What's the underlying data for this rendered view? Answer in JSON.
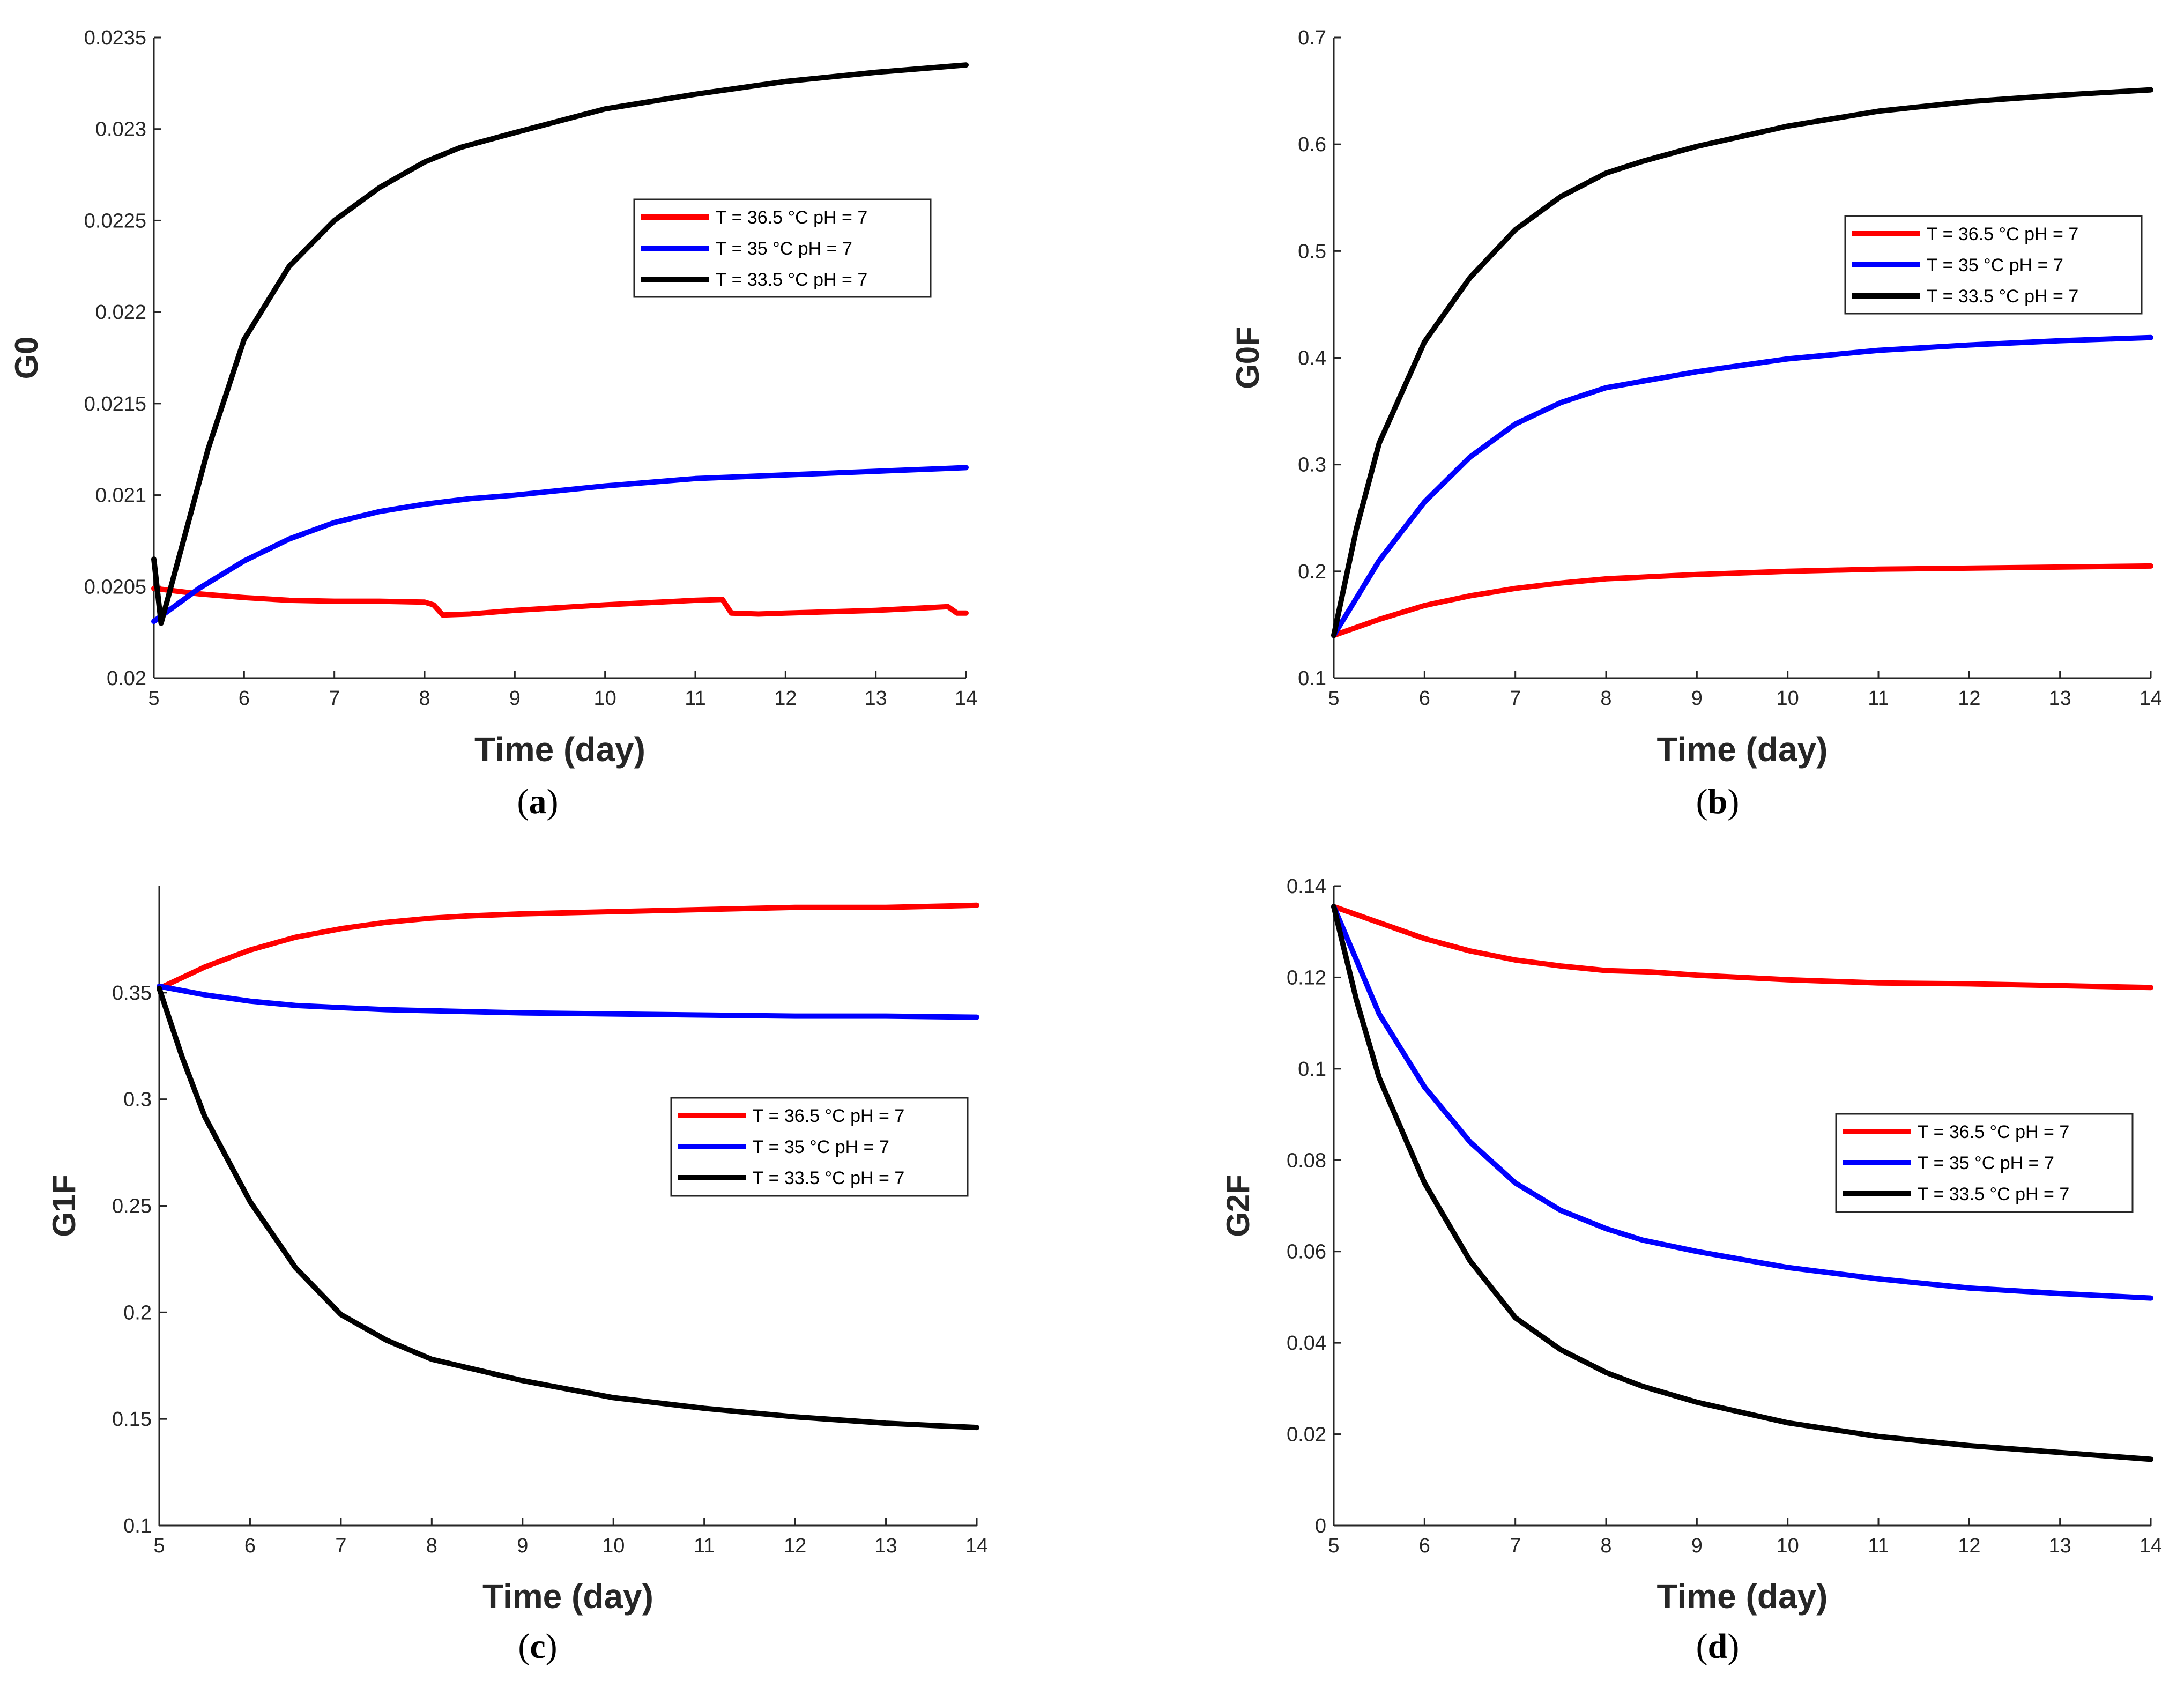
{
  "colors": {
    "red": "#ff0000",
    "blue": "#0000ff",
    "black": "#000000",
    "axis": "#262626"
  },
  "legend_labels": [
    "T = 36.5 °C pH = 7",
    "T = 35 °C pH = 7",
    "T = 33.5 °C pH = 7"
  ],
  "chart_data": [
    {
      "id": "a",
      "type": "line",
      "caption": "a",
      "title": "",
      "xlabel": "Time (day)",
      "ylabel": "G0",
      "xlim": [
        5,
        14
      ],
      "ylim": [
        0.02,
        0.0235
      ],
      "xticks": [
        "5",
        "6",
        "7",
        "8",
        "9",
        "10",
        "11",
        "12",
        "13",
        "14"
      ],
      "yticks": [
        "0.02",
        "0.0205",
        "0.021",
        "0.0215",
        "0.022",
        "0.0225",
        "0.023",
        "0.0235"
      ],
      "legend_position": "upper-right-middle",
      "series": [
        {
          "name": "T = 36.5 °C pH = 7",
          "color": "#ff0000",
          "x": [
            5,
            5.5,
            6,
            6.5,
            7,
            7.5,
            8,
            8.1,
            8.2,
            8.5,
            9,
            10,
            11,
            11.3,
            11.4,
            11.7,
            12,
            13,
            13.8,
            13.9,
            14
          ],
          "y": [
            0.02049,
            0.02046,
            0.02044,
            0.020425,
            0.02042,
            0.02042,
            0.020415,
            0.0204,
            0.020345,
            0.02035,
            0.02037,
            0.0204,
            0.020425,
            0.02043,
            0.020355,
            0.02035,
            0.020355,
            0.02037,
            0.02039,
            0.020355,
            0.020355
          ]
        },
        {
          "name": "T = 35 °C pH = 7",
          "color": "#0000ff",
          "x": [
            5,
            5.5,
            6,
            6.5,
            7,
            7.5,
            8,
            8.5,
            9,
            10,
            11,
            12,
            13,
            14
          ],
          "y": [
            0.02031,
            0.02049,
            0.02064,
            0.02076,
            0.02085,
            0.02091,
            0.02095,
            0.02098,
            0.021,
            0.02105,
            0.02109,
            0.02111,
            0.02113,
            0.02115
          ]
        },
        {
          "name": "T = 33.5 °C pH = 7",
          "color": "#000000",
          "x": [
            5,
            5.08,
            5.3,
            5.6,
            6,
            6.5,
            7,
            7.5,
            8,
            8.4,
            9,
            10,
            11,
            12,
            13,
            14
          ],
          "y": [
            0.02065,
            0.0203,
            0.0207,
            0.02125,
            0.02185,
            0.02225,
            0.0225,
            0.02268,
            0.02282,
            0.0229,
            0.02298,
            0.02311,
            0.02319,
            0.02326,
            0.02331,
            0.02335
          ]
        }
      ]
    },
    {
      "id": "b",
      "type": "line",
      "caption": "b",
      "title": "",
      "xlabel": "Time (day)",
      "ylabel": "G0F",
      "xlim": [
        5,
        14
      ],
      "ylim": [
        0.1,
        0.7
      ],
      "xticks": [
        "5",
        "6",
        "7",
        "8",
        "9",
        "10",
        "11",
        "12",
        "13",
        "14"
      ],
      "yticks": [
        "0.1",
        "0.2",
        "0.3",
        "0.4",
        "0.5",
        "0.6",
        "0.7"
      ],
      "legend_position": "upper-right-middle",
      "series": [
        {
          "name": "T = 36.5 °C pH = 7",
          "color": "#ff0000",
          "x": [
            5,
            5.5,
            6,
            6.5,
            7,
            7.5,
            8,
            8.5,
            9,
            10,
            11,
            12,
            13,
            14
          ],
          "y": [
            0.14,
            0.155,
            0.168,
            0.177,
            0.184,
            0.189,
            0.193,
            0.195,
            0.197,
            0.2,
            0.202,
            0.203,
            0.204,
            0.205
          ]
        },
        {
          "name": "T = 35 °C pH = 7",
          "color": "#0000ff",
          "x": [
            5,
            5.5,
            6,
            6.5,
            7,
            7.5,
            8,
            8.4,
            9,
            10,
            11,
            12,
            13,
            14
          ],
          "y": [
            0.14,
            0.21,
            0.265,
            0.307,
            0.338,
            0.358,
            0.372,
            0.378,
            0.387,
            0.399,
            0.407,
            0.412,
            0.416,
            0.419
          ]
        },
        {
          "name": "T = 33.5 °C pH = 7",
          "color": "#000000",
          "x": [
            5,
            5.25,
            5.5,
            6,
            6.5,
            7,
            7.5,
            8,
            8.4,
            9,
            10,
            11,
            12,
            13,
            14
          ],
          "y": [
            0.14,
            0.24,
            0.32,
            0.415,
            0.475,
            0.52,
            0.551,
            0.573,
            0.584,
            0.598,
            0.617,
            0.631,
            0.64,
            0.646,
            0.651
          ]
        }
      ]
    },
    {
      "id": "c",
      "type": "line",
      "caption": "c",
      "title": "",
      "xlabel": "Time (day)",
      "ylabel": "G1F",
      "xlim": [
        5,
        14
      ],
      "ylim": [
        0.1,
        0.4
      ],
      "xticks": [
        "5",
        "6",
        "7",
        "8",
        "9",
        "10",
        "11",
        "12",
        "13",
        "14"
      ],
      "yticks": [
        "0.1",
        "0.15",
        "0.2",
        "0.25",
        "0.3",
        "0.35"
      ],
      "legend_position": "upper-right-middle",
      "series": [
        {
          "name": "T = 36.5 °C pH = 7",
          "color": "#ff0000",
          "x": [
            5,
            5.5,
            6,
            6.5,
            7,
            7.5,
            8,
            8.4,
            9,
            10,
            11,
            12,
            13,
            14
          ],
          "y": [
            0.352,
            0.362,
            0.37,
            0.376,
            0.38,
            0.383,
            0.385,
            0.386,
            0.387,
            0.388,
            0.389,
            0.39,
            0.39,
            0.391
          ]
        },
        {
          "name": "T = 35 °C pH = 7",
          "color": "#0000ff",
          "x": [
            5,
            5.5,
            6,
            6.5,
            7,
            7.5,
            8,
            9,
            10,
            11,
            12,
            13,
            14
          ],
          "y": [
            0.353,
            0.349,
            0.346,
            0.344,
            0.343,
            0.342,
            0.3415,
            0.3405,
            0.34,
            0.3395,
            0.339,
            0.339,
            0.3385
          ]
        },
        {
          "name": "T = 33.5 °C pH = 7",
          "color": "#000000",
          "x": [
            5,
            5.25,
            5.5,
            6,
            6.5,
            7,
            7.5,
            8,
            8.4,
            9,
            10,
            11,
            12,
            13,
            14
          ],
          "y": [
            0.352,
            0.32,
            0.292,
            0.252,
            0.221,
            0.199,
            0.187,
            0.178,
            0.174,
            0.168,
            0.16,
            0.155,
            0.151,
            0.148,
            0.146
          ]
        }
      ]
    },
    {
      "id": "d",
      "type": "line",
      "caption": "d",
      "title": "",
      "xlabel": "Time (day)",
      "ylabel": "G2F",
      "xlim": [
        5,
        14
      ],
      "ylim": [
        0,
        0.14
      ],
      "xticks": [
        "5",
        "6",
        "7",
        "8",
        "9",
        "10",
        "11",
        "12",
        "13",
        "14"
      ],
      "yticks": [
        "0",
        "0.02",
        "0.04",
        "0.06",
        "0.08",
        "0.1",
        "0.12",
        "0.14"
      ],
      "legend_position": "upper-right-middle",
      "series": [
        {
          "name": "T = 36.5 °C pH = 7",
          "color": "#ff0000",
          "x": [
            5,
            5.5,
            6,
            6.5,
            7,
            7.5,
            8,
            8.5,
            9,
            10,
            11,
            12,
            13,
            14
          ],
          "y": [
            0.1355,
            0.132,
            0.1285,
            0.1258,
            0.1238,
            0.1225,
            0.1215,
            0.1212,
            0.1205,
            0.1195,
            0.1188,
            0.1186,
            0.1182,
            0.1178
          ]
        },
        {
          "name": "T = 35 °C pH = 7",
          "color": "#0000ff",
          "x": [
            5,
            5.5,
            6,
            6.5,
            7,
            7.5,
            8,
            8.4,
            9,
            10,
            11,
            12,
            13,
            14
          ],
          "y": [
            0.1355,
            0.112,
            0.096,
            0.084,
            0.075,
            0.069,
            0.065,
            0.0625,
            0.06,
            0.0565,
            0.054,
            0.052,
            0.0508,
            0.0498
          ]
        },
        {
          "name": "T = 33.5 °C pH = 7",
          "color": "#000000",
          "x": [
            5,
            5.25,
            5.5,
            6,
            6.5,
            7,
            7.5,
            8,
            8.4,
            9,
            10,
            11,
            12,
            13,
            14
          ],
          "y": [
            0.1355,
            0.115,
            0.098,
            0.075,
            0.058,
            0.0455,
            0.0385,
            0.0335,
            0.0305,
            0.027,
            0.0225,
            0.0195,
            0.0175,
            0.016,
            0.0145
          ]
        }
      ]
    }
  ]
}
